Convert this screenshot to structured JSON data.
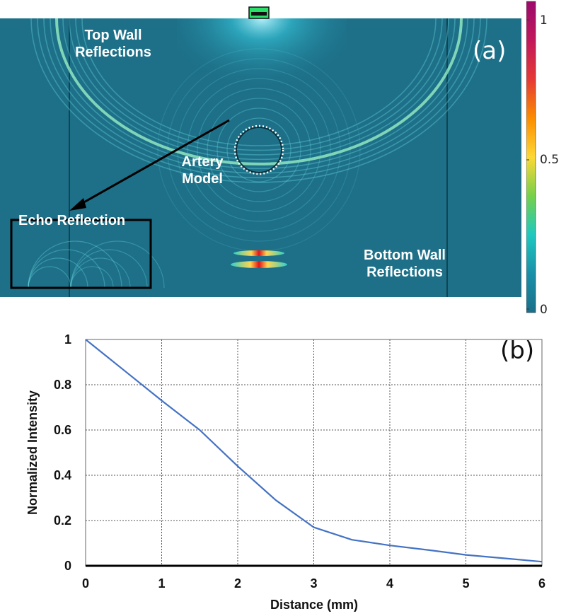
{
  "panel_a": {
    "tag": "(a)",
    "labels": {
      "top_wall": "Top Wall\nReflections",
      "artery": "Artery\nModel",
      "echo": "Echo Reflection",
      "bottom_wall": "Bottom Wall\nReflections"
    },
    "colorbar": {
      "ticks": [
        "1",
        "0.5",
        "0"
      ],
      "colors": [
        "#9b0a6b",
        "#c2185b",
        "#e53935",
        "#fb8c00",
        "#fdd835",
        "#76d04b",
        "#1ec9c0",
        "#1a8fa8",
        "#1a6f8a"
      ]
    },
    "colors": {
      "background": "#1d7088",
      "ring": "#6fe0e8",
      "hot": "#e0141a"
    }
  },
  "panel_b": {
    "tag": "(b)"
  },
  "chart_data": {
    "type": "line",
    "title": "",
    "xlabel": "Distance (mm)",
    "ylabel": "Normalized Intensity",
    "xlim": [
      0,
      6
    ],
    "ylim": [
      0,
      1
    ],
    "xticks": [
      "0",
      "1",
      "2",
      "3",
      "4",
      "5",
      "6"
    ],
    "yticks": [
      "0",
      "0.2",
      "0.4",
      "0.6",
      "0.8",
      "1"
    ],
    "grid": true,
    "series": [
      {
        "color": "#4472c4",
        "x": [
          0,
          0.5,
          1,
          1.5,
          2,
          2.5,
          3,
          3.5,
          4,
          4.5,
          5,
          5.5,
          6
        ],
        "y": [
          1.0,
          0.865,
          0.73,
          0.6,
          0.44,
          0.29,
          0.17,
          0.115,
          0.09,
          0.07,
          0.048,
          0.033,
          0.018
        ]
      }
    ]
  }
}
